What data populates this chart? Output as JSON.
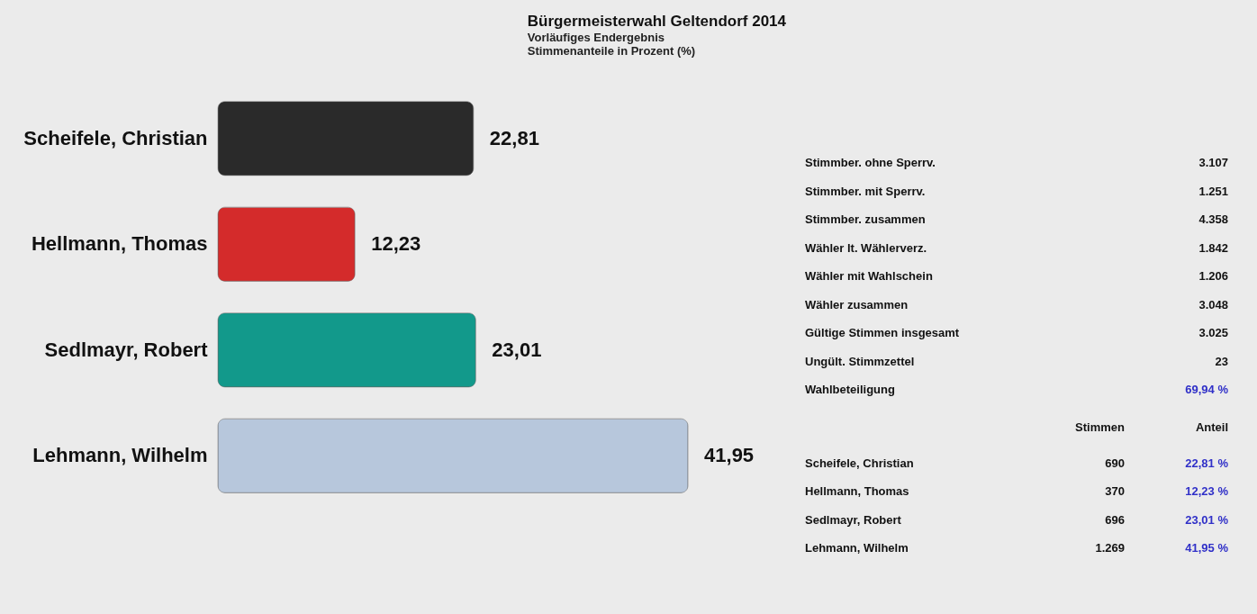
{
  "chart_data": [
    {
      "type": "bar",
      "orientation": "horizontal",
      "title": "Bürgermeisterwahl Geltendorf 2014",
      "subtitle": "Vorläufiges Endergebnis",
      "annotations": [
        "Stimmenanteile in Prozent (%)"
      ],
      "categories": [
        "Scheifele, Christian",
        "Hellmann, Thomas",
        "Sedlmayr, Robert",
        "Lehmann, Wilhelm"
      ],
      "values": [
        22.81,
        12.23,
        23.01,
        41.95
      ],
      "colors": [
        "#2a2a2a",
        "#d42b2b",
        "#12998b",
        "#b7c7dc"
      ],
      "value_labels": [
        "22,81",
        "12,23",
        "23,01",
        "41,95"
      ]
    },
    {
      "type": "other",
      "annotations": [
        "Stimmber. ohne Sperrv.",
        "3.107",
        "Stimmber. mit Sperrv.",
        "1.251",
        "Stimmber. zusammen",
        "4.358",
        "Wähler lt. Wählerverz.",
        "1.842",
        "Wähler mit Wahlschein",
        "1.206",
        "Wähler zusammen",
        "3.048",
        "Gültige Stimmen insgesamt",
        "3.025",
        "Ungült. Stimmzettel",
        "23",
        "Wahlbeteiligung",
        "69,94 %",
        "Stimmen",
        "Anteil",
        "Scheifele, Christian",
        "690",
        "22,81 %",
        "Hellmann, Thomas",
        "370",
        "12,23 %",
        "Sedlmayr, Robert",
        "696",
        "23,01 %",
        "Lehmann, Wilhelm",
        "1.269",
        "41,95 %"
      ]
    }
  ]
}
